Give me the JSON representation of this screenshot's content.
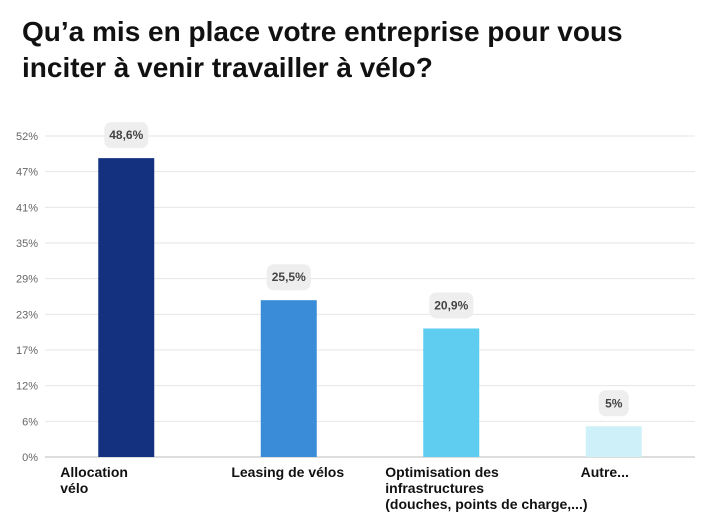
{
  "chart_data": {
    "type": "bar",
    "title": "Qu’a mis en place votre entreprise pour vous inciter à venir travailler à vélo?",
    "categories": [
      [
        "Allocation",
        "vélo"
      ],
      [
        "Leasing de vélos"
      ],
      [
        "Optimisation des",
        "infrastructures",
        "(douches, points de charge,...)"
      ],
      [
        "Autre..."
      ]
    ],
    "values": [
      48.6,
      25.5,
      20.9,
      5
    ],
    "value_labels": [
      "48,6%",
      "25,5%",
      "20,9%",
      "5%"
    ],
    "colors": [
      "#13317f",
      "#3a8cd8",
      "#5fcdf0",
      "#cdf0f9"
    ],
    "yticks": [
      "0%",
      "6%",
      "12%",
      "17%",
      "23%",
      "29%",
      "35%",
      "41%",
      "47%",
      "52%"
    ],
    "ylim": [
      0,
      52.2
    ],
    "grid": true,
    "xlabel": "",
    "ylabel": ""
  }
}
